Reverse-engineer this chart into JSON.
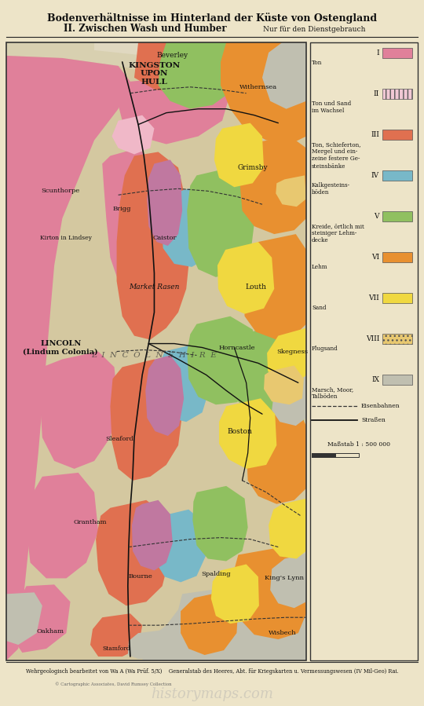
{
  "title_line1": "Bodenverhältnisse im Hinterland der Küste von Ostengland",
  "title_line2": "II. Zwischen Wash und Humber",
  "title_line2_suffix": "Nur für den Dienstgebrauch",
  "bg_color": "#e8dfc4",
  "paper_color": "#ede4c8",
  "footer_text": "Wehrgeologisch bearbeitet von Wa A (Wa Prüf. 5/X)    Generalstab des Heeres, Abt. für Kriegskarten u. Vermessungswesen (IV Mil-Geo)̲Rai.",
  "footer_text2": "Wehrgeologisch bearbeitet von Wa A (Wa Prüf. 5/X)    Generalstab des Heeres, Abt. für Kriegskarten u. Vermessungswesen (IV Mil-Geo) Rai.",
  "copyright_text": "© Cartographic Associates, David Rumsey Collection",
  "watermark_text": "historymaps.com",
  "colors": {
    "pink": "#e0809a",
    "pink_hatch": "#f0b8c8",
    "salmon": "#e07050",
    "blue": "#78b8c8",
    "green": "#90c060",
    "orange": "#e89030",
    "yellow": "#f0d840",
    "sand": "#e8c870",
    "gray": "#c0bfb0",
    "mauve": "#c078a0",
    "sea": "#c8d0b8",
    "land_bg": "#d4c8a0",
    "humber": "#c8c0a0",
    "wash": "#c8c8b8"
  },
  "legend_items": [
    {
      "num": "I",
      "label": "Ton",
      "color": "#e0809a",
      "hatch": null
    },
    {
      "num": "II",
      "label": "Ton und Sand\nim Wachsel",
      "color": "#f0c8d4",
      "hatch": "|||"
    },
    {
      "num": "III",
      "label": "Ton, Schieferton,\nMergel und ein-\nzeine festere Ge-\nsteinsbänke",
      "color": "#e07050",
      "hatch": null
    },
    {
      "num": "IV",
      "label": "Kalkgesteins-\nböden",
      "color": "#78b8c8",
      "hatch": null
    },
    {
      "num": "V",
      "label": "Kreide, örtlich mit\nsteiniger Lehm-\ndecke",
      "color": "#90c060",
      "hatch": null
    },
    {
      "num": "VI",
      "label": "Lehm",
      "color": "#e89030",
      "hatch": null
    },
    {
      "num": "VII",
      "label": "Sand",
      "color": "#f0d840",
      "hatch": null
    },
    {
      "num": "VIII",
      "label": "Flugsand",
      "color": "#e8c870",
      "hatch": "..."
    },
    {
      "num": "IX",
      "label": "Marsch, Moor,\nTalböden",
      "color": "#c0bfb0",
      "hatch": null
    }
  ],
  "scale_text": "Maßstab 1 : 500 000"
}
